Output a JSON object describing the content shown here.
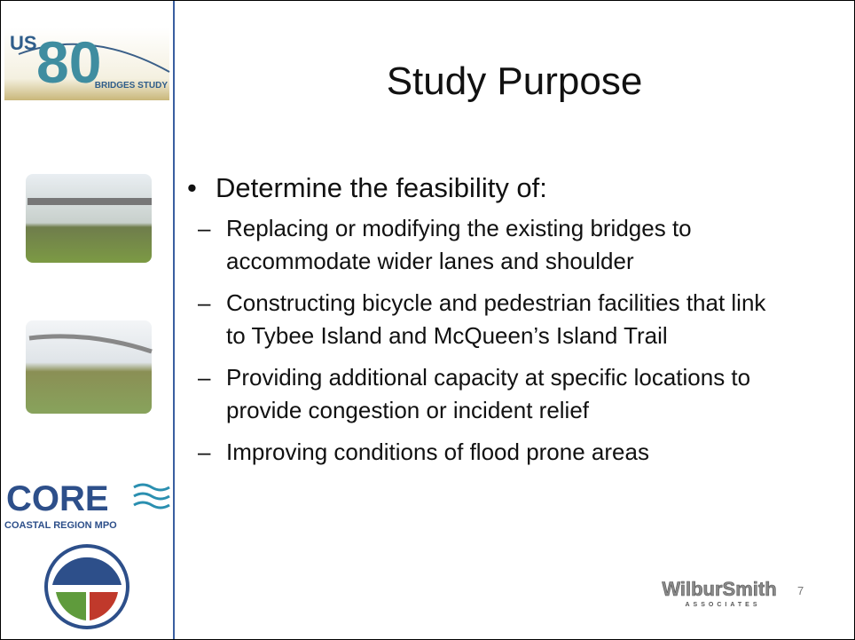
{
  "logos": {
    "us80": {
      "prefix": "US",
      "number": "80",
      "caption": "BRIDGES STUDY"
    },
    "core": {
      "name": "CORE",
      "caption": "COASTAL REGION MPO"
    },
    "wilbursmith": {
      "name": "WilburSmith",
      "caption": "ASSOCIATES"
    }
  },
  "title": "Study Purpose",
  "bullets": [
    {
      "text": "Determine the feasibility of:",
      "subitems": [
        "Replacing or modifying the existing bridges to accommodate wider lanes and shoulder",
        "Constructing bicycle and pedestrian facilities that link to Tybee Island and McQueen’s Island Trail",
        "Providing additional capacity at specific locations to provide congestion or incident relief",
        "Improving conditions of flood prone areas"
      ]
    }
  ],
  "page_number": "7"
}
